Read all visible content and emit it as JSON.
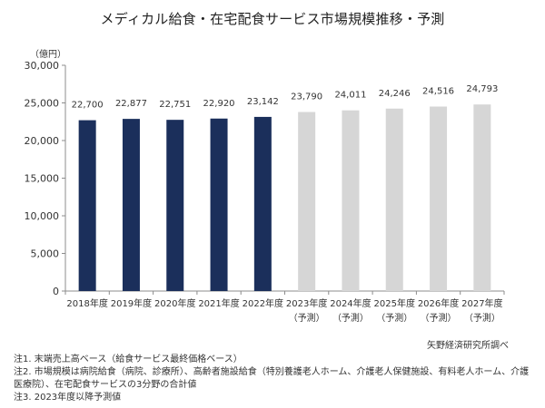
{
  "title": "メディカル給食・在宅配食サービス市場規模推移・予測",
  "unit_label": "（億円）",
  "source": "矢野経済研究所調べ",
  "notes": [
    "注1. 末端売上高ベース（給食サービス最終価格ベース）",
    "注2. 市場規模は病院給食（病院、診療所）、高齢者施設給食（特別養護老人ホーム、介護老人保健施設、有料老人ホーム、介護医療院）、在宅配食サービスの3分野の合計値",
    "注3. 2023年度以降予測値"
  ],
  "colors": {
    "actual": "#1b2f5b",
    "forecast": "#d6d6d6",
    "axis": "#8c8c8c",
    "text": "#333333"
  },
  "chart_data": {
    "type": "bar",
    "categories": [
      "2018年度",
      "2019年度",
      "2020年度",
      "2021年度",
      "2022年度",
      "2023年度",
      "2024年度",
      "2025年度",
      "2026年度",
      "2027年度"
    ],
    "category_sublabels": [
      "",
      "",
      "",
      "",
      "",
      "（予測）",
      "（予測）",
      "（予測）",
      "（予測）",
      "（予測）"
    ],
    "values": [
      22700,
      22877,
      22751,
      22920,
      23142,
      23790,
      24011,
      24246,
      24516,
      24793
    ],
    "value_labels": [
      "22,700",
      "22,877",
      "22,751",
      "22,920",
      "23,142",
      "23,790",
      "24,011",
      "24,246",
      "24,516",
      "24,793"
    ],
    "forecast": [
      false,
      false,
      false,
      false,
      false,
      true,
      true,
      true,
      true,
      true
    ],
    "ylim": [
      0,
      30000
    ],
    "yticks": [
      0,
      5000,
      10000,
      15000,
      20000,
      25000,
      30000
    ],
    "ytick_labels": [
      "0",
      "5,000",
      "10,000",
      "15,000",
      "20,000",
      "25,000",
      "30,000"
    ],
    "ylabel": "（億円）",
    "xlabel": "",
    "grid": false
  }
}
